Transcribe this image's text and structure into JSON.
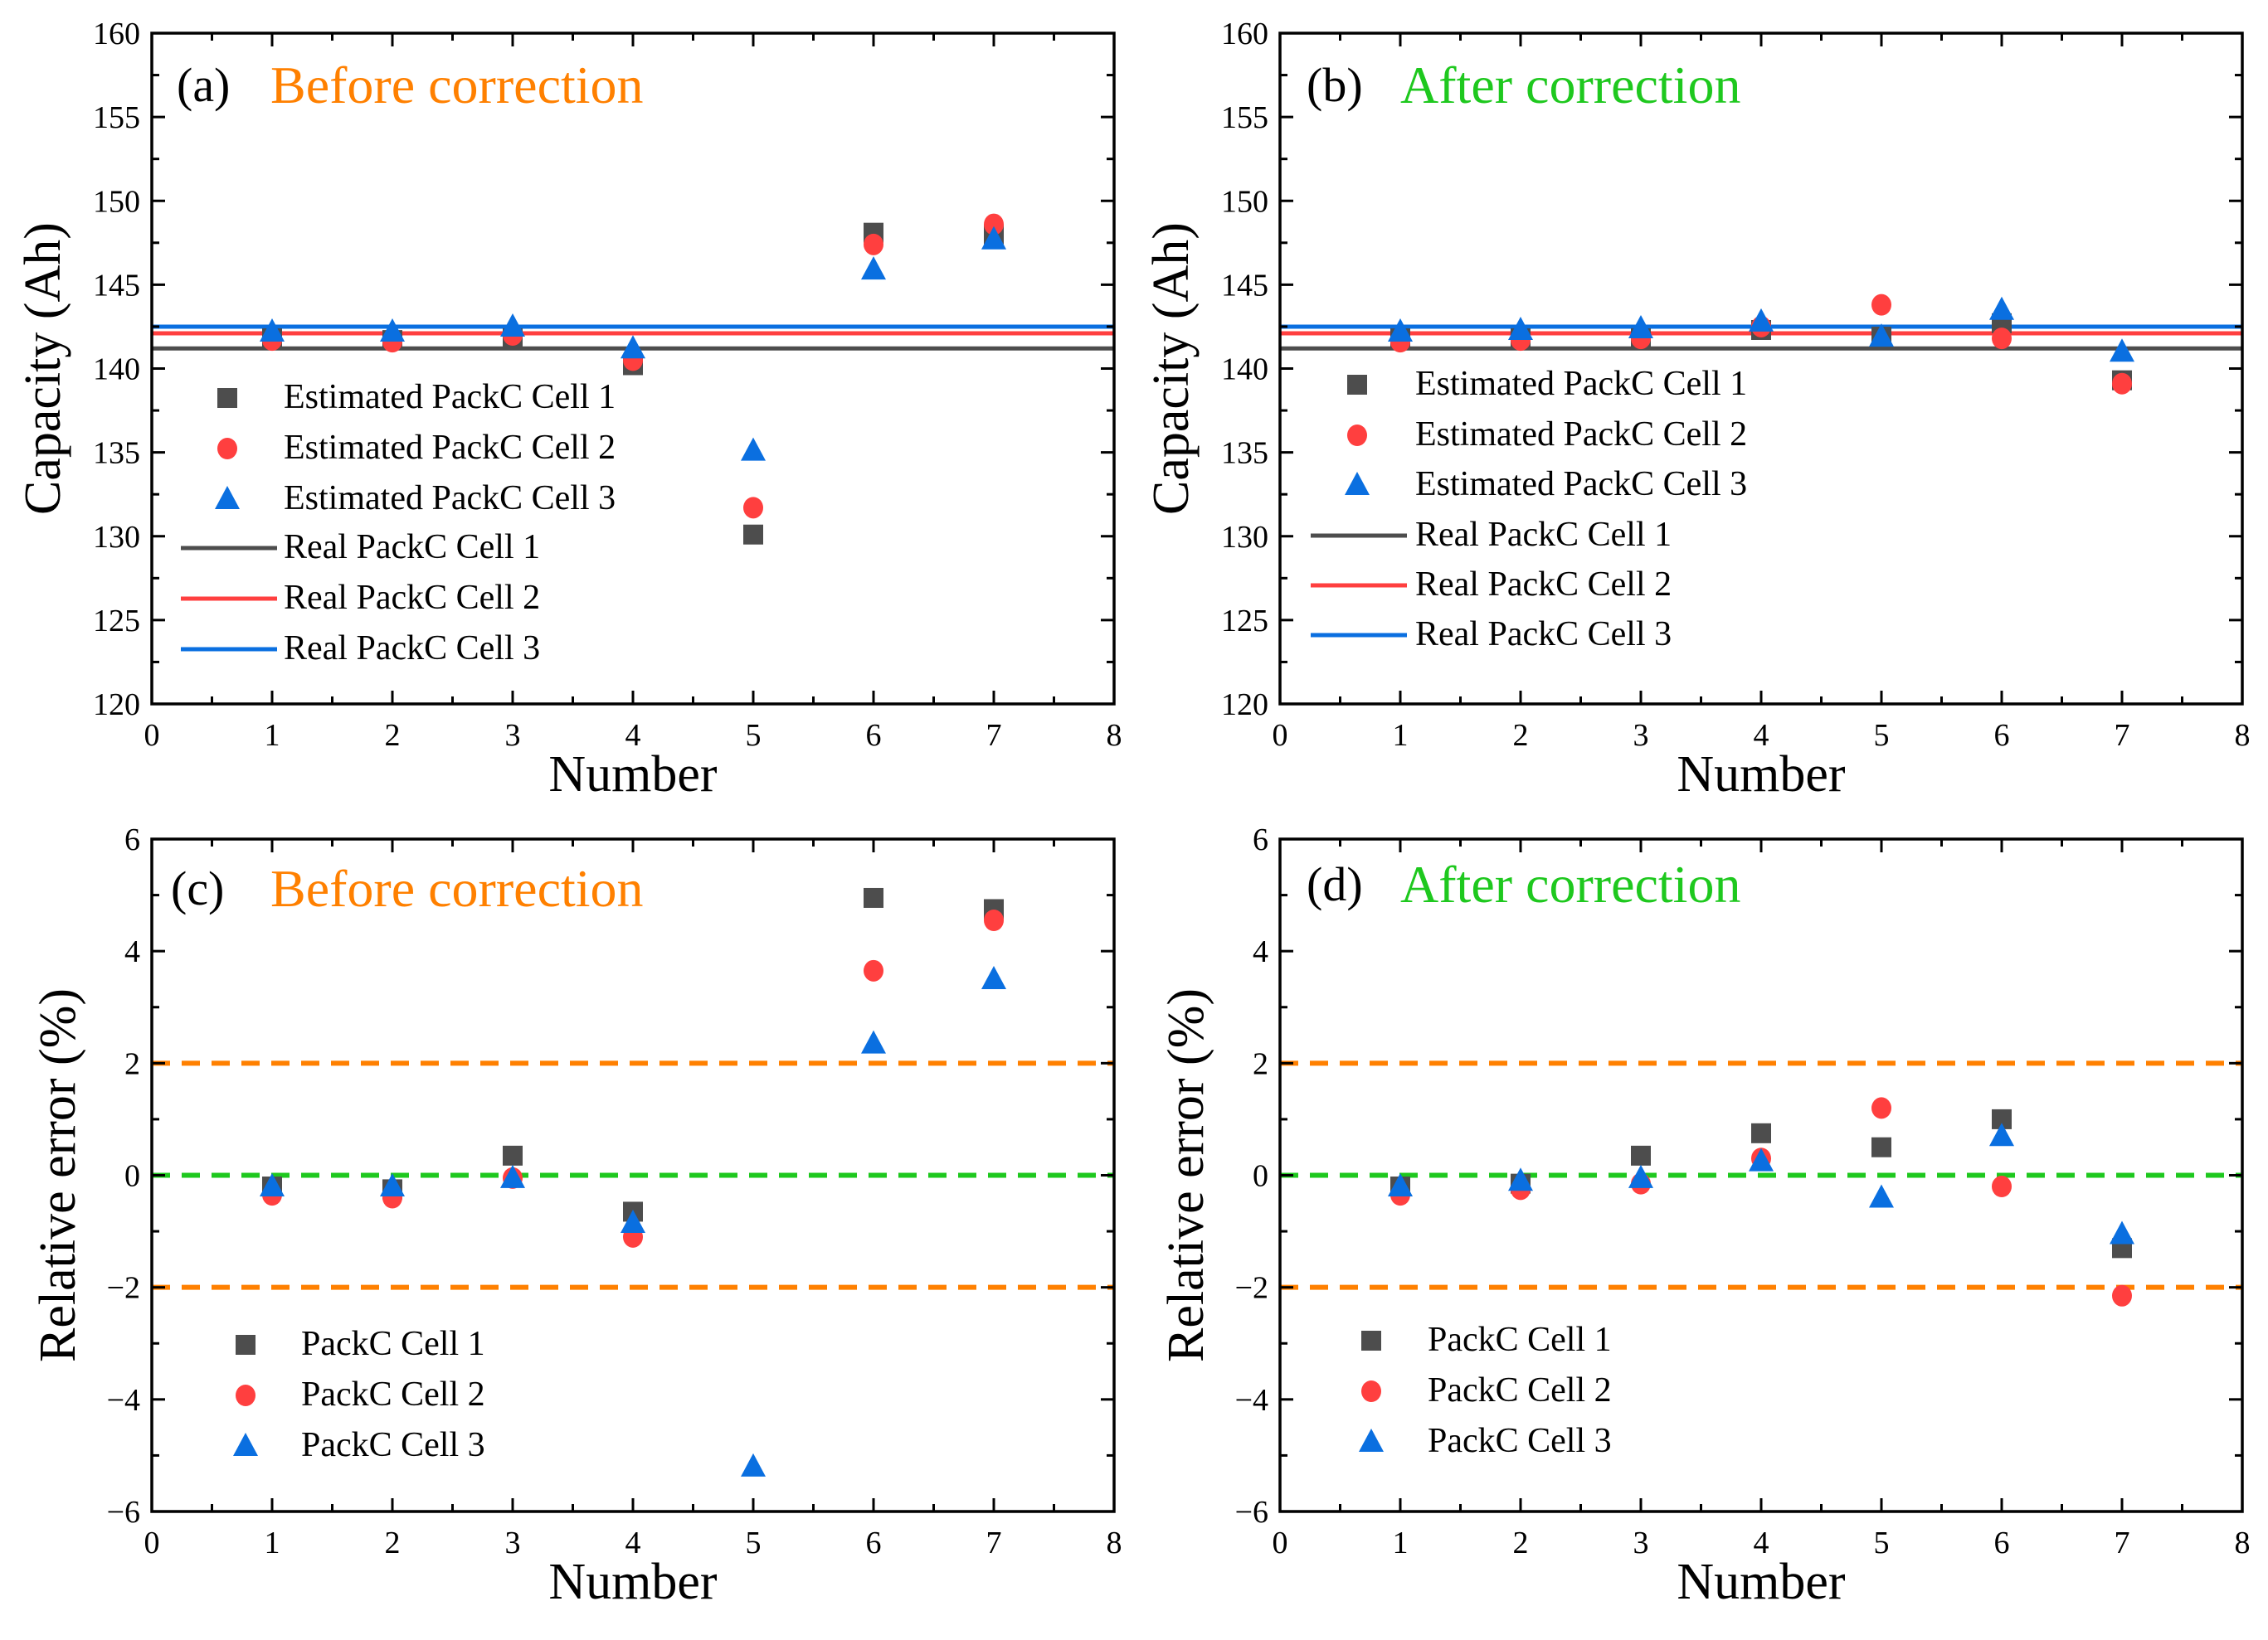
{
  "colors": {
    "cell1": "#4d4d4d",
    "cell2": "#ff3f3f",
    "cell3": "#0a6fe0",
    "before": "#ff8000",
    "after": "#1ec81e",
    "limit_line": "#ff8000",
    "zero_line": "#1ec81e"
  },
  "chart_data": [
    {
      "type": "scatter",
      "panel_label": "(a)",
      "title": "Before correction",
      "title_color": "#ff8000",
      "xlabel": "Number",
      "ylabel": "Capacity (Ah)",
      "xlim": [
        0,
        8
      ],
      "ylim": [
        120,
        160
      ],
      "xticks": [
        "0",
        "1",
        "2",
        "3",
        "4",
        "5",
        "6",
        "7",
        "8"
      ],
      "yticks": [
        "120",
        "125",
        "130",
        "135",
        "140",
        "145",
        "150",
        "155",
        "160"
      ],
      "x": [
        1,
        2,
        3,
        4,
        5,
        6,
        7
      ],
      "series": [
        {
          "name": "Estimated PackC Cell 1",
          "marker": "square",
          "values": [
            141.8,
            141.7,
            141.8,
            140.2,
            130.1,
            148.1,
            148.0
          ]
        },
        {
          "name": "Estimated PackC Cell 2",
          "marker": "circle",
          "values": [
            141.7,
            141.6,
            142.0,
            140.5,
            131.7,
            147.4,
            148.6
          ]
        },
        {
          "name": "Estimated PackC Cell 3",
          "marker": "triangle",
          "values": [
            142.2,
            142.2,
            142.5,
            141.2,
            135.1,
            145.9,
            147.7
          ]
        }
      ],
      "hlines": [
        {
          "name": "Real PackC Cell 1",
          "value": 141.2,
          "color": "#4d4d4d"
        },
        {
          "name": "Real PackC Cell 2",
          "value": 142.1,
          "color": "#ff3f3f"
        },
        {
          "name": "Real PackC Cell 3",
          "value": 142.5,
          "color": "#0a6fe0"
        }
      ],
      "legend": "left"
    },
    {
      "type": "scatter",
      "panel_label": "(b)",
      "title": "After correction",
      "title_color": "#1ec81e",
      "xlabel": "Number",
      "ylabel": "Capacity (Ah)",
      "xlim": [
        0,
        8
      ],
      "ylim": [
        120,
        160
      ],
      "xticks": [
        "0",
        "1",
        "2",
        "3",
        "4",
        "5",
        "6",
        "7",
        "8"
      ],
      "yticks": [
        "120",
        "125",
        "130",
        "135",
        "140",
        "145",
        "150",
        "155",
        "160"
      ],
      "x": [
        1,
        2,
        3,
        4,
        5,
        6,
        7
      ],
      "series": [
        {
          "name": "Estimated PackC Cell 1",
          "marker": "square",
          "values": [
            141.8,
            141.8,
            141.8,
            142.3,
            141.9,
            142.7,
            139.3
          ]
        },
        {
          "name": "Estimated PackC Cell 2",
          "marker": "circle",
          "values": [
            141.6,
            141.7,
            141.8,
            142.5,
            143.8,
            141.8,
            139.1
          ]
        },
        {
          "name": "Estimated PackC Cell 3",
          "marker": "triangle",
          "values": [
            142.2,
            142.3,
            142.4,
            142.8,
            141.9,
            143.5,
            141.0
          ]
        }
      ],
      "hlines": [
        {
          "name": "Real PackC Cell 1",
          "value": 141.2,
          "color": "#4d4d4d"
        },
        {
          "name": "Real PackC Cell 2",
          "value": 142.1,
          "color": "#ff3f3f"
        },
        {
          "name": "Real PackC Cell 3",
          "value": 142.5,
          "color": "#0a6fe0"
        }
      ],
      "legend": "left"
    },
    {
      "type": "scatter",
      "panel_label": "(c)",
      "title": "Before correction",
      "title_color": "#ff8000",
      "xlabel": "Number",
      "ylabel": "Relative error (%)",
      "xlim": [
        0,
        8
      ],
      "ylim": [
        -6,
        6
      ],
      "xticks": [
        "0",
        "1",
        "2",
        "3",
        "4",
        "5",
        "6",
        "7",
        "8"
      ],
      "yticks": [
        "−6",
        "−4",
        "−2",
        "0",
        "2",
        "4",
        "6"
      ],
      "x": [
        1,
        2,
        3,
        4,
        5,
        6,
        7
      ],
      "series": [
        {
          "name": "PackC Cell 1",
          "marker": "square",
          "values": [
            -0.2,
            -0.25,
            0.35,
            -0.65,
            null,
            4.95,
            4.75
          ]
        },
        {
          "name": "PackC Cell 2",
          "marker": "circle",
          "values": [
            -0.35,
            -0.4,
            -0.05,
            -1.1,
            null,
            3.65,
            4.55
          ]
        },
        {
          "name": "PackC Cell 3",
          "marker": "triangle",
          "values": [
            -0.2,
            -0.2,
            -0.05,
            -0.85,
            -5.2,
            2.35,
            3.5
          ]
        }
      ],
      "reference_lines": [
        {
          "value": 2,
          "color": "#ff8000",
          "style": "dashed"
        },
        {
          "value": 0,
          "color": "#1ec81e",
          "style": "dashed"
        },
        {
          "value": -2,
          "color": "#ff8000",
          "style": "dashed"
        }
      ],
      "legend": "bottom-left"
    },
    {
      "type": "scatter",
      "panel_label": "(d)",
      "title": "After correction",
      "title_color": "#1ec81e",
      "xlabel": "Number",
      "ylabel": "Relative error (%)",
      "xlim": [
        0,
        8
      ],
      "ylim": [
        -6,
        6
      ],
      "xticks": [
        "0",
        "1",
        "2",
        "3",
        "4",
        "5",
        "6",
        "7",
        "8"
      ],
      "yticks": [
        "−6",
        "−4",
        "−2",
        "0",
        "2",
        "4",
        "6"
      ],
      "x": [
        1,
        2,
        3,
        4,
        5,
        6,
        7
      ],
      "series": [
        {
          "name": "PackC Cell 1",
          "marker": "square",
          "values": [
            -0.2,
            -0.15,
            0.35,
            0.75,
            0.5,
            1.0,
            -1.3
          ]
        },
        {
          "name": "PackC Cell 2",
          "marker": "circle",
          "values": [
            -0.35,
            -0.25,
            -0.15,
            0.3,
            1.2,
            -0.2,
            -2.15
          ]
        },
        {
          "name": "PackC Cell 3",
          "marker": "triangle",
          "values": [
            -0.2,
            -0.1,
            -0.05,
            0.25,
            -0.4,
            0.7,
            -1.05
          ]
        }
      ],
      "reference_lines": [
        {
          "value": 2,
          "color": "#ff8000",
          "style": "dashed"
        },
        {
          "value": 0,
          "color": "#1ec81e",
          "style": "dashed"
        },
        {
          "value": -2,
          "color": "#ff8000",
          "style": "dashed"
        }
      ],
      "legend": "bottom-left"
    }
  ]
}
